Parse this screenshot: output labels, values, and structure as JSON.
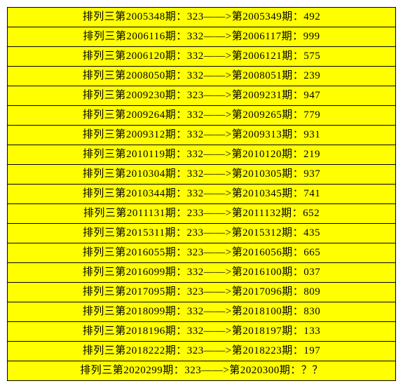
{
  "table": {
    "background_color": "#ffff00",
    "border_color": "#000000",
    "text_color": "#000000",
    "font_size": 15,
    "prefix": "排列三第",
    "period_suffix": "期：",
    "arrow": "——>",
    "next_prefix": "第",
    "rows": [
      {
        "p1": "2005348",
        "v1": "323",
        "p2": "2005349",
        "v2": "492"
      },
      {
        "p1": "2006116",
        "v1": "332",
        "p2": "2006117",
        "v2": "999"
      },
      {
        "p1": "2006120",
        "v1": "332",
        "p2": "2006121",
        "v2": "575"
      },
      {
        "p1": "2008050",
        "v1": "332",
        "p2": "2008051",
        "v2": "239"
      },
      {
        "p1": "2009230",
        "v1": "323",
        "p2": "2009231",
        "v2": "947"
      },
      {
        "p1": "2009264",
        "v1": "332",
        "p2": "2009265",
        "v2": "779"
      },
      {
        "p1": "2009312",
        "v1": "332",
        "p2": "2009313",
        "v2": "931"
      },
      {
        "p1": "2010119",
        "v1": "332",
        "p2": "2010120",
        "v2": "219"
      },
      {
        "p1": "2010304",
        "v1": "332",
        "p2": "2010305",
        "v2": "937"
      },
      {
        "p1": "2010344",
        "v1": "332",
        "p2": "2010345",
        "v2": "741"
      },
      {
        "p1": "2011131",
        "v1": "233",
        "p2": "2011132",
        "v2": "652"
      },
      {
        "p1": "2015311",
        "v1": "233",
        "p2": "2015312",
        "v2": "435"
      },
      {
        "p1": "2016055",
        "v1": "323",
        "p2": "2016056",
        "v2": "665"
      },
      {
        "p1": "2016099",
        "v1": "332",
        "p2": "2016100",
        "v2": "037"
      },
      {
        "p1": "2017095",
        "v1": "323",
        "p2": "2017096",
        "v2": "809"
      },
      {
        "p1": "2018099",
        "v1": "332",
        "p2": "2018100",
        "v2": "830"
      },
      {
        "p1": "2018196",
        "v1": "332",
        "p2": "2018197",
        "v2": "133"
      },
      {
        "p1": "2018222",
        "v1": "323",
        "p2": "2018223",
        "v2": "197"
      },
      {
        "p1": "2020299",
        "v1": "323",
        "p2": "2020300",
        "v2": "？？"
      }
    ]
  }
}
